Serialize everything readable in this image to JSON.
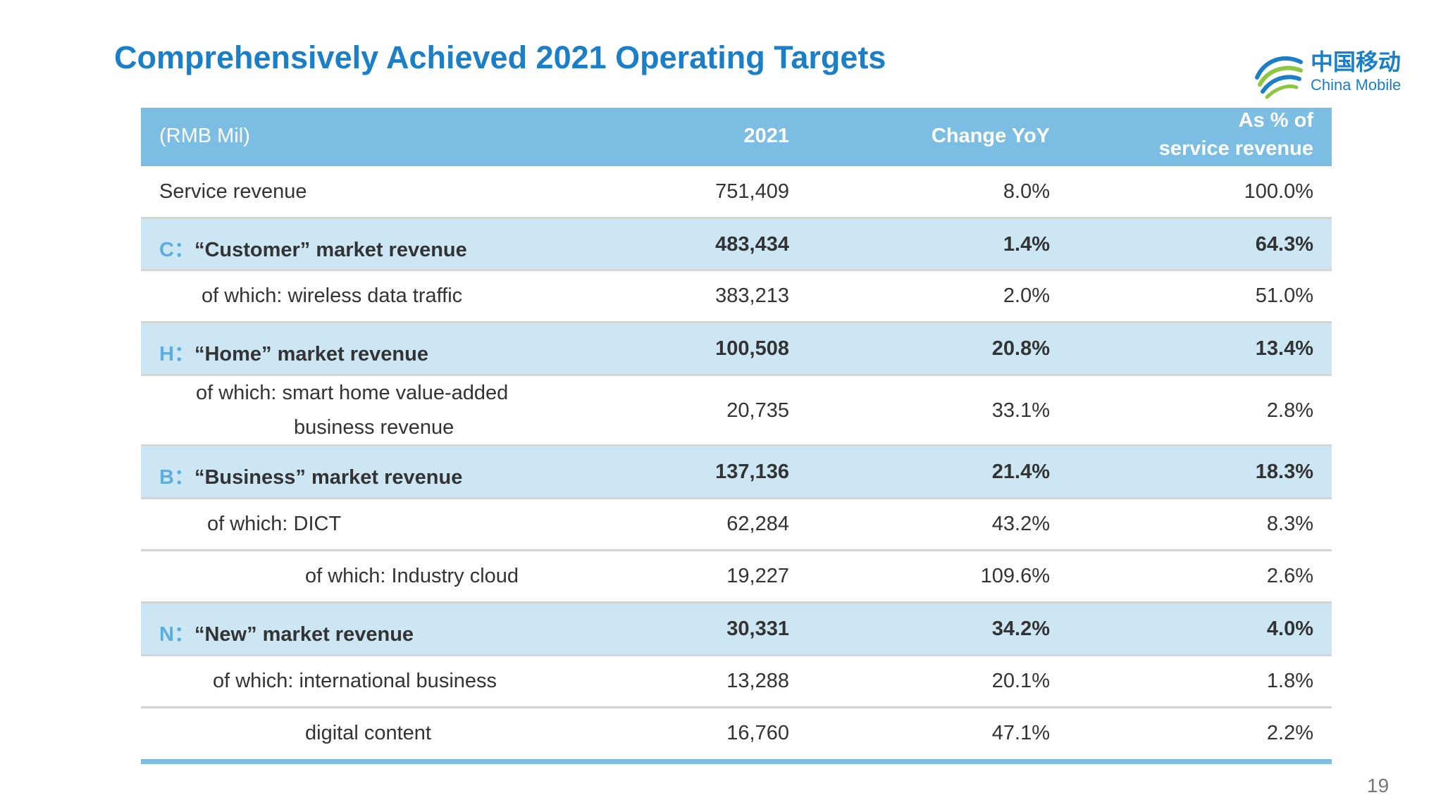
{
  "title": "Comprehensively Achieved 2021 Operating Targets",
  "logo": {
    "chinese": "中国移动",
    "english": "China Mobile",
    "colors": [
      "#1a7fc8",
      "#8dc63f"
    ]
  },
  "table": {
    "header": {
      "unit": "(RMB Mil)",
      "col_2021": "2021",
      "col_change": "Change YoY",
      "col_pct_line1": "As % of",
      "col_pct_line2": "service revenue"
    },
    "rows": [
      {
        "label": "Service revenue",
        "value": "751,409",
        "change": "8.0%",
        "pct": "100.0%"
      },
      {
        "prefix": "C：",
        "label": "“Customer” market revenue",
        "value": "483,434",
        "change": "1.4%",
        "pct": "64.3%"
      },
      {
        "label": "of which: wireless data traffic",
        "value": "383,213",
        "change": "2.0%",
        "pct": "51.0%"
      },
      {
        "prefix": "H：",
        "label": "“Home” market revenue",
        "value": "100,508",
        "change": "20.8%",
        "pct": "13.4%"
      },
      {
        "label_line1": "of which: smart home value-added",
        "label_line2": "business revenue",
        "value": "20,735",
        "change": "33.1%",
        "pct": "2.8%"
      },
      {
        "prefix": "B：",
        "label": "“Business” market revenue",
        "value": "137,136",
        "change": "21.4%",
        "pct": "18.3%"
      },
      {
        "label": "of which: DICT",
        "value": "62,284",
        "change": "43.2%",
        "pct": "8.3%"
      },
      {
        "label": "of which: Industry cloud",
        "value": "19,227",
        "change": "109.6%",
        "pct": "2.6%"
      },
      {
        "prefix": "N：",
        "label": "“New” market revenue",
        "value": "30,331",
        "change": "34.2%",
        "pct": "4.0%"
      },
      {
        "label": "of which: international business",
        "value": "13,288",
        "change": "20.1%",
        "pct": "1.8%"
      },
      {
        "label": "digital content",
        "value": "16,760",
        "change": "47.1%",
        "pct": "2.2%"
      }
    ]
  },
  "page_number": "19",
  "colors": {
    "title": "#1a7fc8",
    "header_bg": "#7cbde3",
    "segment_bg": "#cce6f4",
    "segment_prefix": "#5aaee0"
  }
}
